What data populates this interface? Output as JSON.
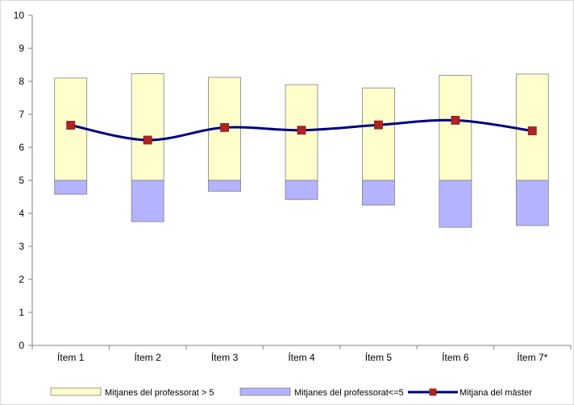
{
  "chart_data": {
    "type": "bar",
    "categories": [
      "Ítem 1",
      "Ítem 2",
      "Ítem 3",
      "Ítem 4",
      "Ítem 5",
      "Ítem 6",
      "Ítem 7*"
    ],
    "baseline": 5,
    "series": [
      {
        "name": "Mitjanes del professorat > 5",
        "type": "floating-bar",
        "color": "#ffffcc",
        "values": [
          8.1,
          8.23,
          8.12,
          7.9,
          7.8,
          8.18,
          8.22
        ]
      },
      {
        "name": "Mitjanes del professorat<=5",
        "type": "floating-bar",
        "color": "#b3b3ff",
        "values": [
          4.58,
          3.75,
          4.67,
          4.42,
          4.25,
          3.58,
          3.63
        ]
      },
      {
        "name": "Mitjana del màster",
        "type": "line",
        "color": "#000080",
        "marker_color": "#b22222",
        "values": [
          6.67,
          6.22,
          6.6,
          6.52,
          6.68,
          6.82,
          6.5
        ]
      }
    ],
    "ylim": [
      0,
      10
    ],
    "yticks": [
      0,
      1,
      2,
      3,
      4,
      5,
      6,
      7,
      8,
      9,
      10
    ],
    "grid": false,
    "legend": "bottom"
  }
}
